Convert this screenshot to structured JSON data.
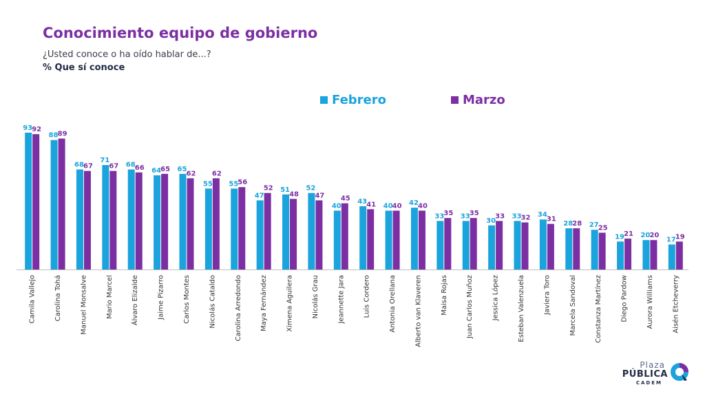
{
  "header": {
    "title": "Conocimiento equipo de gobierno",
    "subtitle": "¿Usted conoce o ha oído hablar de...?",
    "measure": "% Que sí conoce"
  },
  "logo": {
    "line1": "Plaza",
    "line2": "PÚBLICA",
    "line3": "CADEM",
    "icon": "cadem-logo-icon"
  },
  "colors": {
    "febrero": "#1aa3dc",
    "marzo": "#7b2fa3",
    "title": "#7b2fa3"
  },
  "chart_data": {
    "type": "bar",
    "categories": [
      "Camila Vallejo",
      "Carolina Tohá",
      "Manuel Monsalve",
      "Mario Marcel",
      "Álvaro Elizalde",
      "Jaime Pizarro",
      "Carlos Montes",
      "Nicolás Cataldo",
      "Carolina Arredondo",
      "Maya Fernández",
      "Ximena Aguilera",
      "Nicolás Grau",
      "Jeannette Jara",
      "Luis Cordero",
      "Antonia Orellana",
      "Alberto van Klaveren",
      "Maisa Rojas",
      "Juan Carlos Muñoz",
      "Jessica López",
      "Esteban Valenzuela",
      "Javiera Toro",
      "Marcela Sandoval",
      "Constanza Martínez",
      "Diego Pardow",
      "Aurora Williams",
      "Aisén Etcheverry"
    ],
    "series": [
      {
        "name": "Febrero",
        "values": [
          93,
          88,
          68,
          71,
          68,
          64,
          65,
          55,
          55,
          47,
          51,
          52,
          40,
          43,
          40,
          42,
          33,
          33,
          30,
          33,
          34,
          28,
          27,
          19,
          20,
          17
        ]
      },
      {
        "name": "Marzo",
        "values": [
          92,
          89,
          67,
          67,
          66,
          65,
          62,
          62,
          56,
          52,
          48,
          47,
          45,
          41,
          40,
          40,
          35,
          35,
          33,
          32,
          31,
          28,
          25,
          21,
          20,
          19
        ]
      }
    ],
    "ylim": [
      0,
      100
    ],
    "grid": false,
    "legend": "top-center"
  }
}
